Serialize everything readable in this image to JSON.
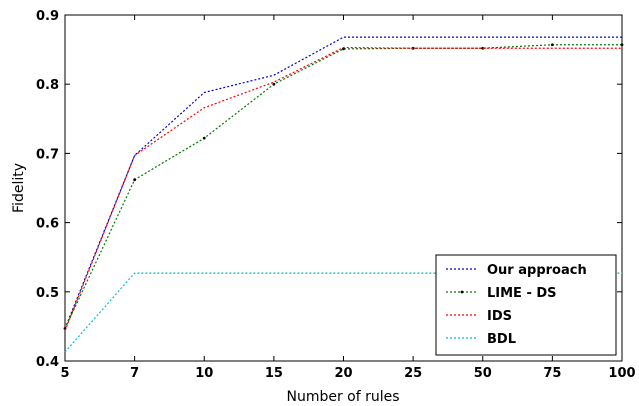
{
  "chart_data": {
    "type": "line",
    "categories": [
      "5",
      "7",
      "10",
      "15",
      "20",
      "25",
      "50",
      "75",
      "100"
    ],
    "xlabel": "Number of rules",
    "ylabel": "Fidelity",
    "ylim": [
      0.4,
      0.9
    ],
    "yticks": [
      "0.4",
      "0.5",
      "0.6",
      "0.7",
      "0.8",
      "0.9"
    ],
    "grid": false,
    "legend_position": "bottom-right",
    "series": [
      {
        "name": "Our approach",
        "color": "#0000cc",
        "marker": "none",
        "values": [
          0.447,
          0.697,
          0.788,
          0.813,
          0.868,
          0.868,
          0.868,
          0.868,
          0.868
        ]
      },
      {
        "name": "LIME - DS",
        "color": "#007700",
        "marker": "dot",
        "values": [
          0.447,
          0.662,
          0.722,
          0.8,
          0.851,
          0.852,
          0.852,
          0.857,
          0.857
        ]
      },
      {
        "name": "IDS",
        "color": "#ff0000",
        "marker": "none",
        "values": [
          0.444,
          0.697,
          0.766,
          0.803,
          0.853,
          0.852,
          0.852,
          0.852,
          0.852
        ]
      },
      {
        "name": "BDL",
        "color": "#00bcd4",
        "marker": "none",
        "values": [
          0.413,
          0.527,
          0.527,
          0.527,
          0.527,
          0.527,
          0.527,
          0.527,
          0.527
        ]
      }
    ]
  }
}
